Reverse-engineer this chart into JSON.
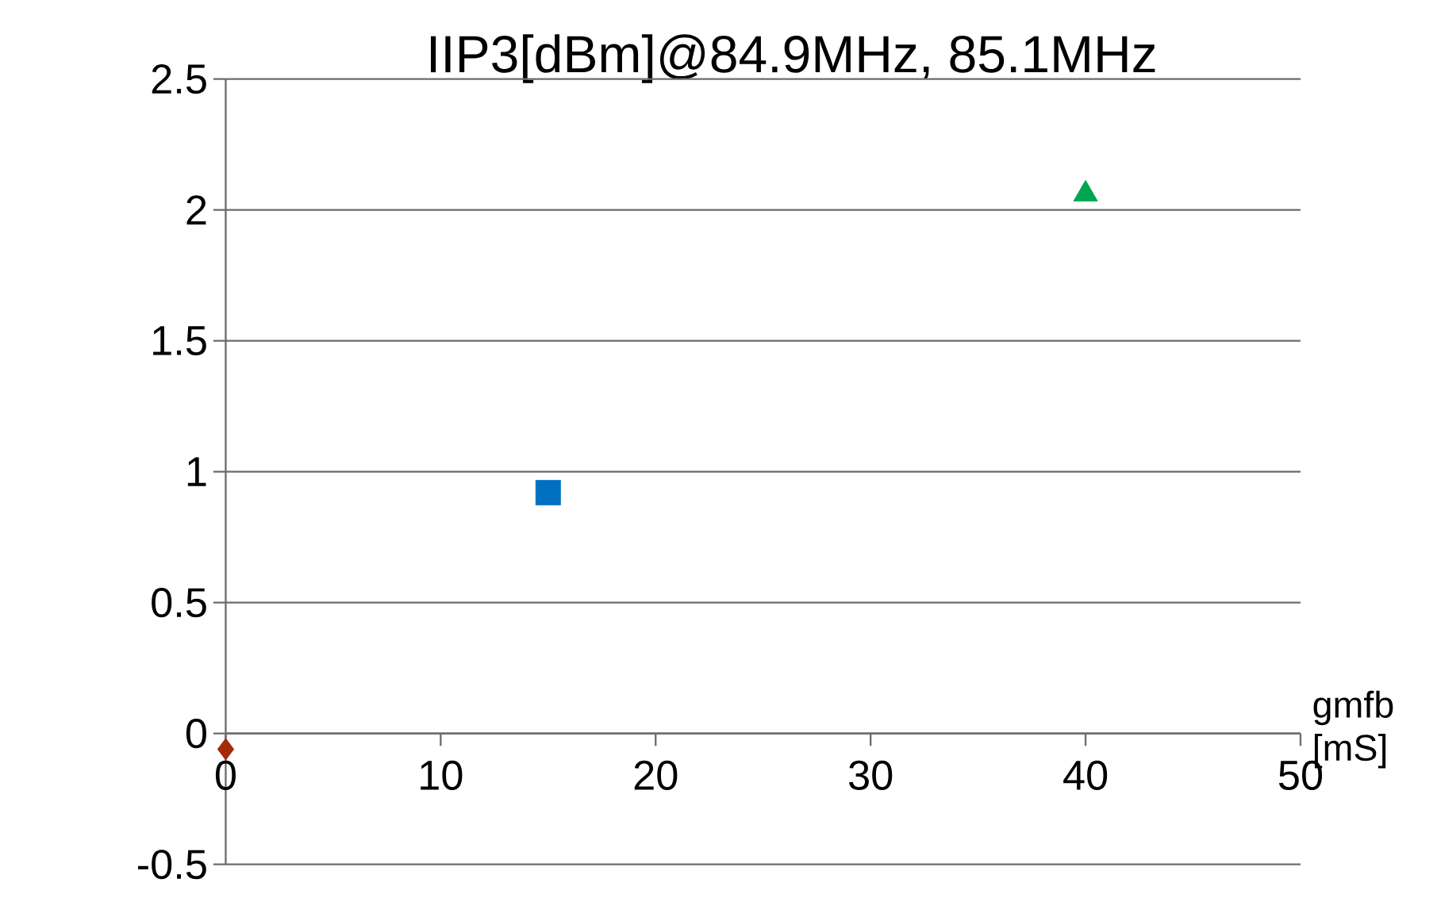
{
  "chart_data": {
    "type": "scatter",
    "title": "IIP3[dBm]@84.9MHz, 85.1MHz",
    "xlabel": "gmfb [mS]",
    "series": [
      {
        "x": [
          0
        ],
        "values": [
          -0.06
        ],
        "color": "#a52a0a",
        "marker": "diamond"
      },
      {
        "x": [
          15
        ],
        "values": [
          0.92
        ],
        "color": "#0070c0",
        "marker": "square"
      },
      {
        "x": [
          40
        ],
        "values": [
          2.06
        ],
        "color": "#00a550",
        "marker": "triangle"
      }
    ],
    "xlim": [
      0,
      50
    ],
    "xticks": [
      0,
      10,
      20,
      30,
      40,
      50
    ],
    "ylim": [
      -0.5,
      2.5
    ],
    "yticks": [
      -0.5,
      0,
      0.5,
      1,
      1.5,
      2,
      2.5
    ],
    "grid": "y"
  }
}
